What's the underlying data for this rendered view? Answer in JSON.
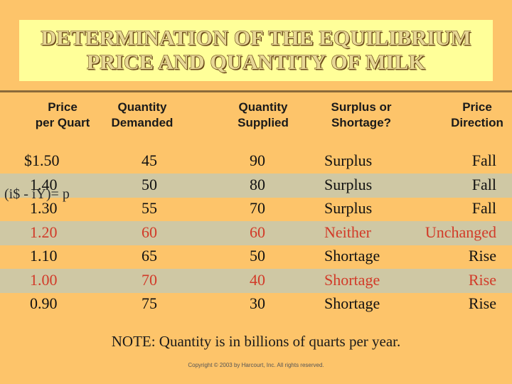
{
  "title": {
    "line1": "DETERMINATION OF THE EQUILIBRIUM",
    "line2": "PRICE AND QUANTITY OF MILK"
  },
  "headers": [
    {
      "line1": "Price",
      "line2": "per Quart"
    },
    {
      "line1": "Quantity",
      "line2": "Demanded"
    },
    {
      "line1": "Quantity",
      "line2": "Supplied"
    },
    {
      "line1": "Surplus or",
      "line2": "Shortage?"
    },
    {
      "line1": "Price",
      "line2": "Direction"
    }
  ],
  "rows": [
    {
      "price": "$1.50",
      "demanded": "45",
      "supplied": "90",
      "status": "Surplus",
      "direction": "Fall",
      "highlight": false,
      "red": false
    },
    {
      "price": "1.40",
      "demanded": "50",
      "supplied": "80",
      "status": "Surplus",
      "direction": "Fall",
      "highlight": true,
      "red": false
    },
    {
      "price": "1.30",
      "demanded": "55",
      "supplied": "70",
      "status": "Surplus",
      "direction": "Fall",
      "highlight": false,
      "red": false
    },
    {
      "price": "1.20",
      "demanded": "60",
      "supplied": "60",
      "status": "Neither",
      "direction": "Unchanged",
      "highlight": true,
      "red": true
    },
    {
      "price": "1.10",
      "demanded": "65",
      "supplied": "50",
      "status": "Shortage",
      "direction": "Rise",
      "highlight": false,
      "red": false
    },
    {
      "price": "1.00",
      "demanded": "70",
      "supplied": "40",
      "status": "Shortage",
      "direction": "Rise",
      "highlight": true,
      "red": true
    },
    {
      "price": "0.90",
      "demanded": "75",
      "supplied": "30",
      "status": "Shortage",
      "direction": "Rise",
      "highlight": false,
      "red": false
    }
  ],
  "overlay_formula": "(i$ - iY)= p",
  "note": "NOTE: Quantity is in billions of quarts per year.",
  "copyright": "Copyright © 2003 by Harcourt, Inc. All rights reserved.",
  "colors": {
    "background": "#fdc46a",
    "title_box": "#ffff99",
    "row_band": "#cfc8a4",
    "highlight_text": "#d23a28"
  }
}
